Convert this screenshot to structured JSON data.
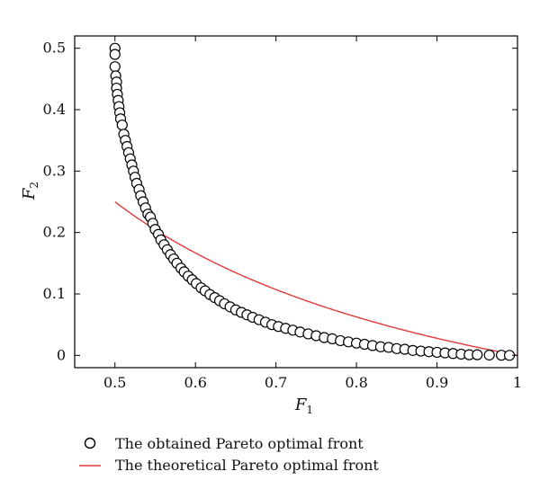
{
  "chart_data": {
    "type": "scatter",
    "xlabel": "F",
    "xlabel_sub": "1",
    "ylabel": "F",
    "ylabel_sub": "2",
    "xlim": [
      0.45,
      1.0
    ],
    "ylim": [
      -0.02,
      0.52
    ],
    "x_ticks": [
      0.5,
      0.6,
      0.7,
      0.8,
      0.9,
      1.0
    ],
    "x_tick_labels": [
      "0.5",
      "0.6",
      "0.7",
      "0.8",
      "0.9",
      "1"
    ],
    "y_ticks": [
      0,
      0.1,
      0.2,
      0.3,
      0.4,
      0.5
    ],
    "y_tick_labels": [
      "0",
      "0.1",
      "0.2",
      "0.3",
      "0.4",
      "0.5"
    ],
    "grid": false,
    "legend_position": "bottom",
    "series": [
      {
        "name": "The obtained Pareto optimal front",
        "type": "scatter",
        "marker": "open-circle",
        "color": "#000000",
        "x": [
          0.5,
          0.5,
          0.5,
          0.501,
          0.502,
          0.502,
          0.503,
          0.504,
          0.505,
          0.506,
          0.507,
          0.509,
          0.511,
          0.513,
          0.515,
          0.517,
          0.519,
          0.521,
          0.523,
          0.525,
          0.527,
          0.53,
          0.532,
          0.535,
          0.538,
          0.541,
          0.544,
          0.547,
          0.55,
          0.554,
          0.557,
          0.561,
          0.565,
          0.569,
          0.573,
          0.577,
          0.582,
          0.586,
          0.591,
          0.596,
          0.601,
          0.607,
          0.612,
          0.618,
          0.624,
          0.63,
          0.636,
          0.643,
          0.65,
          0.657,
          0.664,
          0.671,
          0.679,
          0.687,
          0.695,
          0.703,
          0.712,
          0.721,
          0.73,
          0.74,
          0.75,
          0.76,
          0.77,
          0.78,
          0.79,
          0.8,
          0.81,
          0.82,
          0.83,
          0.84,
          0.85,
          0.86,
          0.87,
          0.88,
          0.89,
          0.9,
          0.91,
          0.92,
          0.93,
          0.94,
          0.95,
          0.965,
          0.98,
          0.99
        ],
        "y": [
          0.5,
          0.49,
          0.47,
          0.455,
          0.445,
          0.435,
          0.425,
          0.415,
          0.405,
          0.395,
          0.385,
          0.375,
          0.36,
          0.35,
          0.34,
          0.33,
          0.32,
          0.31,
          0.3,
          0.29,
          0.28,
          0.27,
          0.26,
          0.25,
          0.24,
          0.23,
          0.225,
          0.215,
          0.205,
          0.197,
          0.188,
          0.18,
          0.172,
          0.164,
          0.157,
          0.15,
          0.142,
          0.136,
          0.129,
          0.123,
          0.117,
          0.11,
          0.105,
          0.099,
          0.094,
          0.089,
          0.084,
          0.079,
          0.074,
          0.07,
          0.066,
          0.062,
          0.058,
          0.054,
          0.05,
          0.047,
          0.044,
          0.041,
          0.038,
          0.035,
          0.032,
          0.029,
          0.027,
          0.024,
          0.022,
          0.02,
          0.018,
          0.016,
          0.014,
          0.013,
          0.011,
          0.01,
          0.008,
          0.007,
          0.006,
          0.005,
          0.004,
          0.003,
          0.002,
          0.001,
          0.001,
          0.0005,
          0.0002,
          0.0
        ]
      },
      {
        "name": "The theoretical Pareto optimal front",
        "type": "line",
        "color": "#e03a3a"
      }
    ]
  }
}
